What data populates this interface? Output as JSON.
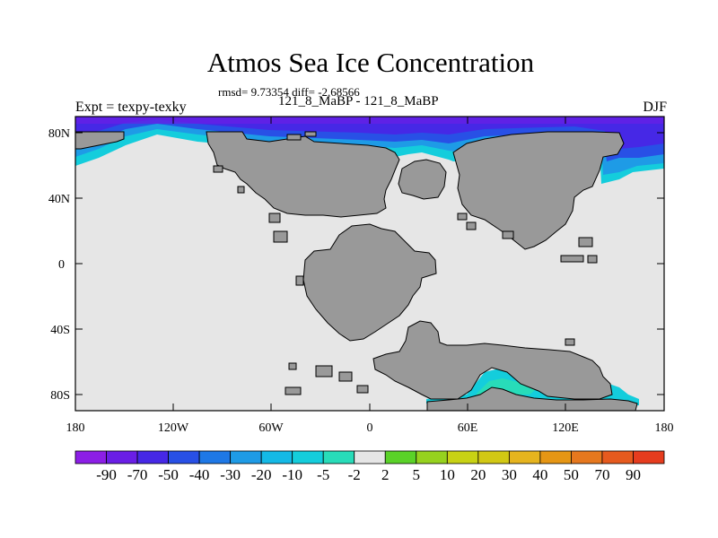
{
  "title": "Atmos Sea Ice Concentration",
  "stats": "rmsd= 9.73354 diff= -2.68566",
  "subtitle": "121_8_MaBP - 121_8_MaBP",
  "left_label": "Expt = texpy-texky",
  "right_label": "DJF",
  "axes": {
    "lat_ticks": [
      "80N",
      "40N",
      "0",
      "40S",
      "80S"
    ],
    "lon_ticks": [
      "180",
      "120W",
      "60W",
      "0",
      "60E",
      "120E",
      "180"
    ]
  },
  "colorbar": {
    "labels": [
      "-90",
      "-70",
      "-50",
      "-40",
      "-30",
      "-20",
      "-10",
      "-5",
      "-2",
      "2",
      "5",
      "10",
      "20",
      "30",
      "40",
      "50",
      "70",
      "90"
    ],
    "colors": [
      "#8c1ee6",
      "#6a1ee6",
      "#4628e6",
      "#2850e6",
      "#1e78e6",
      "#1e9be6",
      "#14b9e6",
      "#14cddc",
      "#28dcb9",
      "#e6e6e6",
      "#5ad228",
      "#96d21e",
      "#c8d214",
      "#d2c814",
      "#e6b41e",
      "#e69614",
      "#e6781e",
      "#e65a1e",
      "#e63c1e"
    ]
  }
}
